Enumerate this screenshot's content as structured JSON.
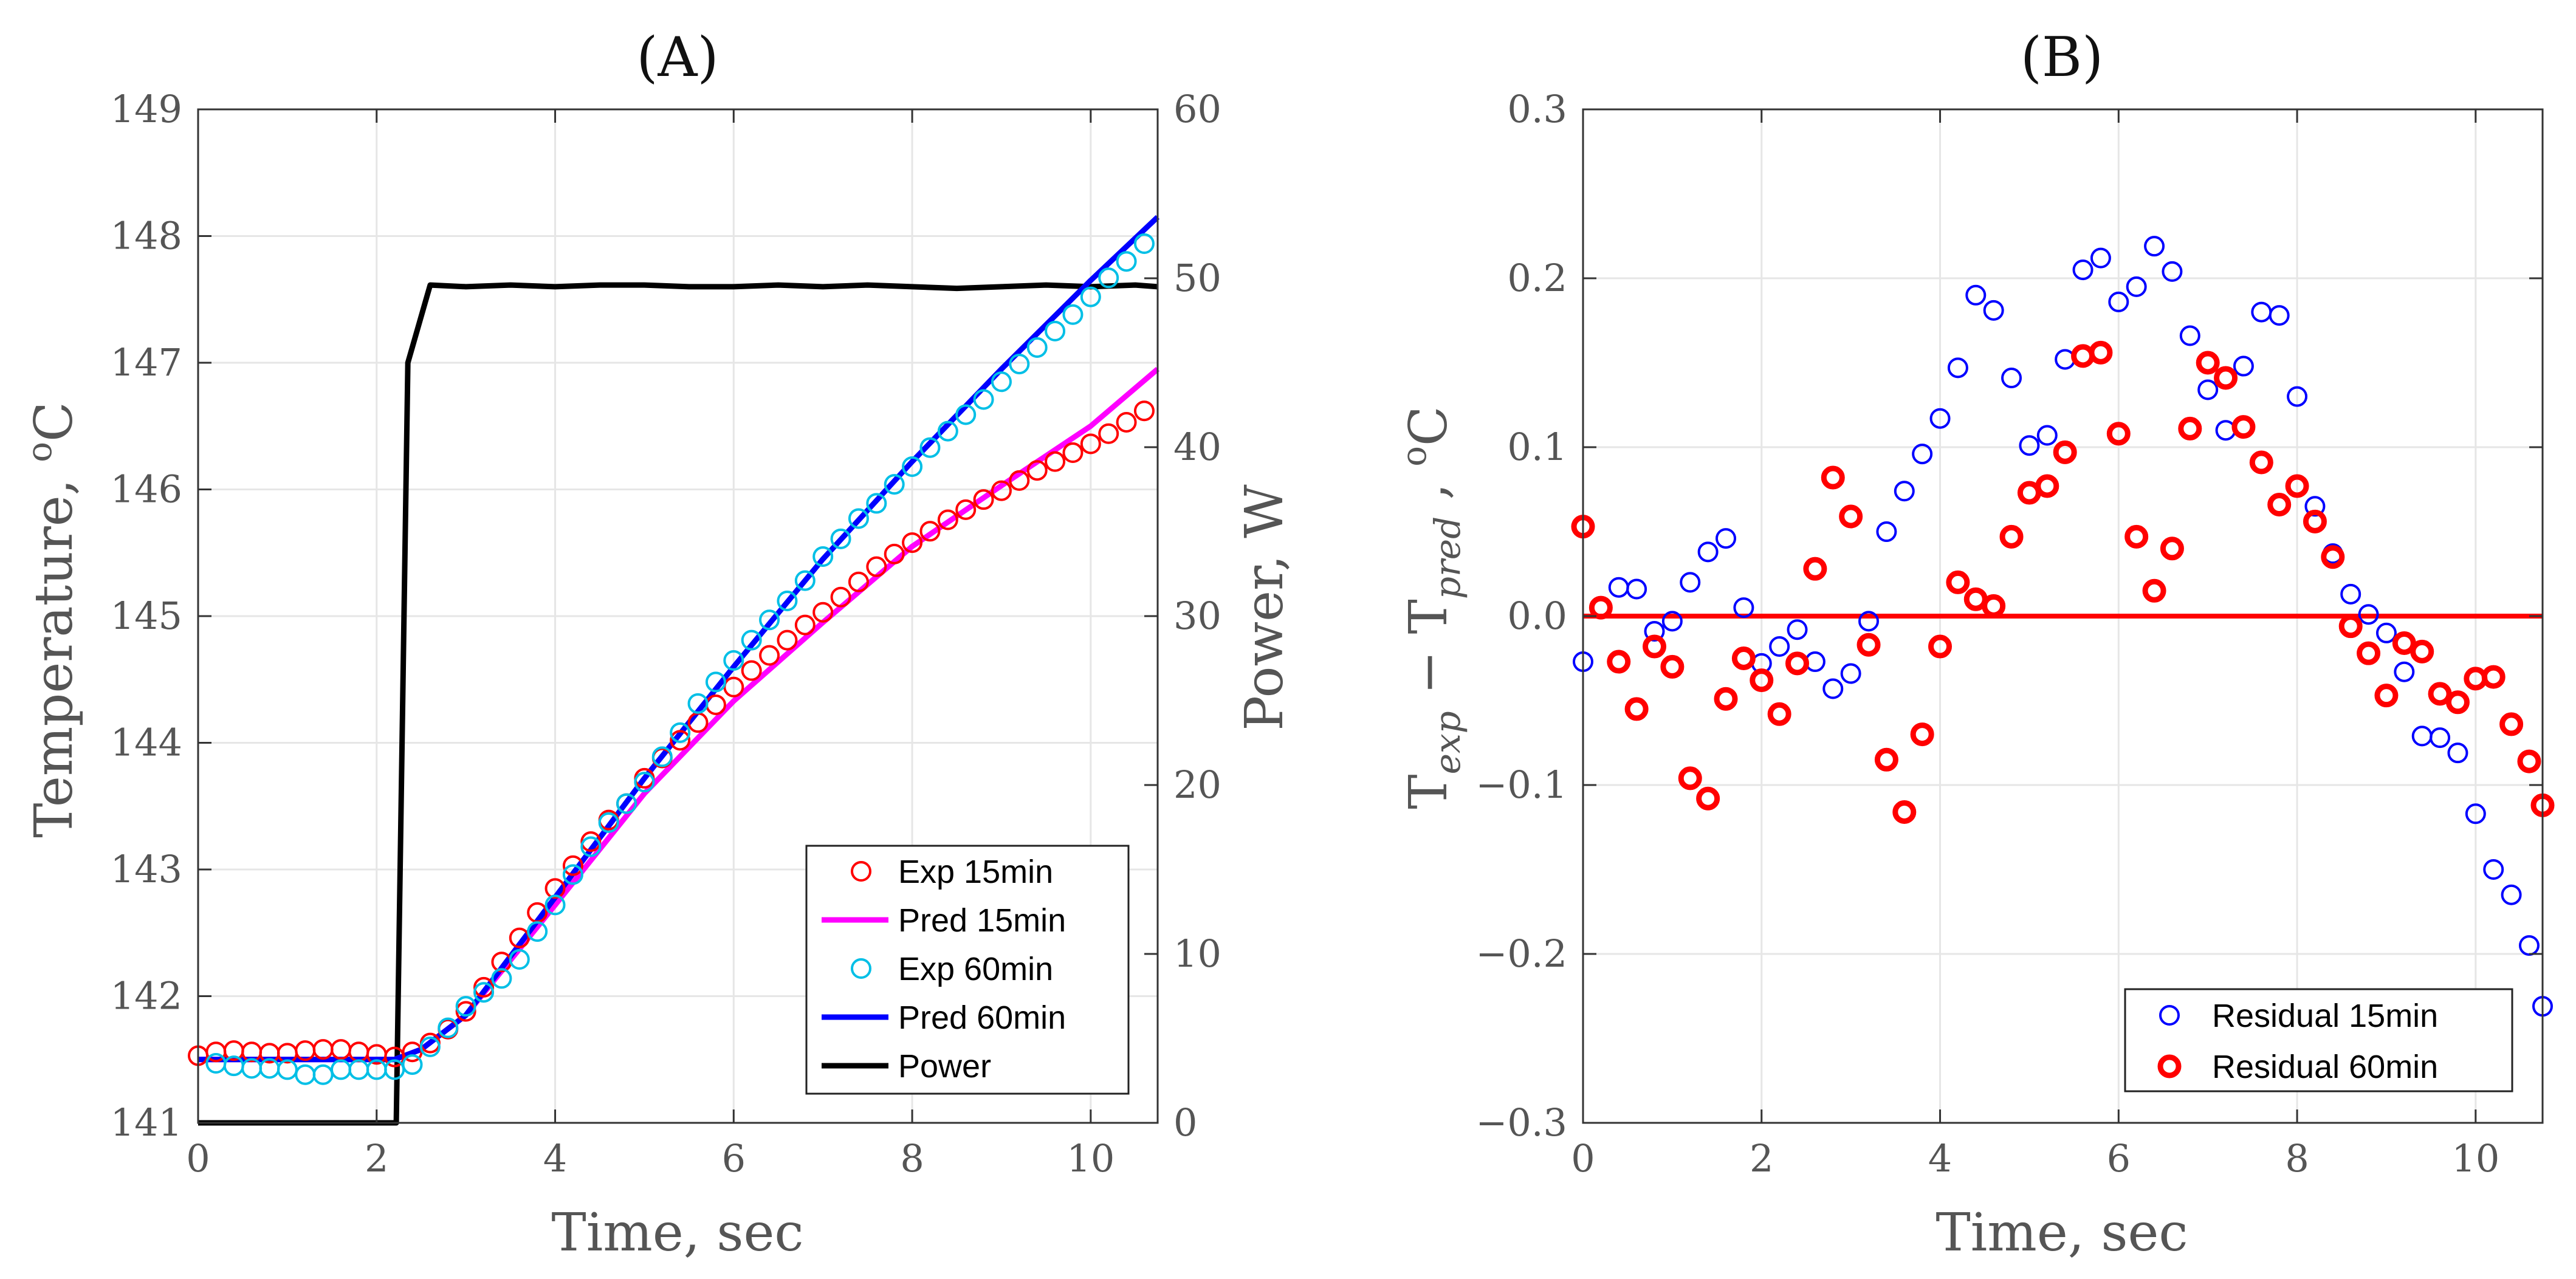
{
  "chart_data": [
    {
      "type": "line",
      "title": "(A)",
      "xlabel": "Time, sec",
      "ylabel": "Temperature, ",
      "ylabel_unit": "C",
      "ylabel_sup": "o",
      "ylabel_right": "Power, W",
      "xlim": [
        0,
        10.75
      ],
      "ylim": [
        141,
        149
      ],
      "ylim_right": [
        0,
        60
      ],
      "xticks": [
        "0",
        "2",
        "4",
        "6",
        "8",
        "10"
      ],
      "yticks": [
        "141",
        "142",
        "143",
        "144",
        "145",
        "146",
        "147",
        "148",
        "149"
      ],
      "yticks_right": [
        "0",
        "10",
        "20",
        "30",
        "40",
        "50",
        "60"
      ],
      "grid": true,
      "legend_position": "bottom-right",
      "colors": {
        "exp15": "#ff0000",
        "pred15": "#ff00ff",
        "exp60": "#00bfe6",
        "pred60": "#0000ff",
        "power": "#000000"
      },
      "series": [
        {
          "name": "Exp 15min",
          "marker": "circle",
          "x": [
            0,
            0.2,
            0.4,
            0.6,
            0.8,
            1.0,
            1.2,
            1.4,
            1.6,
            1.8,
            2.0,
            2.2,
            2.4,
            2.6,
            2.8,
            3.0,
            3.2,
            3.4,
            3.6,
            3.8,
            4.0,
            4.2,
            4.4,
            4.6,
            4.8,
            5.0,
            5.2,
            5.4,
            5.6,
            5.8,
            6.0,
            6.2,
            6.4,
            6.6,
            6.8,
            7.0,
            7.2,
            7.4,
            7.6,
            7.8,
            8.0,
            8.2,
            8.4,
            8.6,
            8.8,
            9.0,
            9.2,
            9.4,
            9.6,
            9.8,
            10.0,
            10.2,
            10.4,
            10.6
          ],
          "y": [
            141.53,
            141.56,
            141.57,
            141.56,
            141.55,
            141.55,
            141.57,
            141.58,
            141.58,
            141.56,
            141.54,
            141.52,
            141.56,
            141.63,
            141.74,
            141.88,
            142.07,
            142.27,
            142.46,
            142.66,
            142.85,
            143.03,
            143.22,
            143.39,
            143.52,
            143.72,
            143.88,
            144.02,
            144.16,
            144.3,
            144.44,
            144.57,
            144.69,
            144.81,
            144.93,
            145.03,
            145.15,
            145.27,
            145.39,
            145.49,
            145.58,
            145.67,
            145.76,
            145.84,
            145.92,
            145.99,
            146.07,
            146.15,
            146.22,
            146.29,
            146.36,
            146.44,
            146.53,
            146.62
          ]
        },
        {
          "name": "Pred 15min",
          "x": [
            0,
            2.2,
            2.5,
            3,
            4,
            5,
            6,
            7,
            8,
            9,
            10,
            10.75
          ],
          "y": [
            141.5,
            141.5,
            141.58,
            141.85,
            142.72,
            143.6,
            144.33,
            144.95,
            145.55,
            146.03,
            146.5,
            146.95
          ]
        },
        {
          "name": "Exp 60min",
          "marker": "circle",
          "x": [
            0.2,
            0.4,
            0.6,
            0.8,
            1.0,
            1.2,
            1.4,
            1.6,
            1.8,
            2.0,
            2.2,
            2.4,
            2.6,
            2.8,
            3.0,
            3.2,
            3.4,
            3.6,
            3.8,
            4.0,
            4.2,
            4.4,
            4.6,
            4.8,
            5.0,
            5.2,
            5.4,
            5.6,
            5.8,
            6.0,
            6.2,
            6.4,
            6.6,
            6.8,
            7.0,
            7.2,
            7.4,
            7.6,
            7.8,
            8.0,
            8.2,
            8.4,
            8.6,
            8.8,
            9.0,
            9.2,
            9.4,
            9.6,
            9.8,
            10.0,
            10.2,
            10.4,
            10.6
          ],
          "y": [
            141.47,
            141.45,
            141.43,
            141.43,
            141.42,
            141.38,
            141.38,
            141.42,
            141.42,
            141.42,
            141.42,
            141.46,
            141.6,
            141.75,
            141.92,
            142.03,
            142.14,
            142.29,
            142.51,
            142.72,
            142.96,
            143.18,
            143.37,
            143.52,
            143.69,
            143.89,
            144.08,
            144.31,
            144.48,
            144.65,
            144.81,
            144.97,
            145.12,
            145.28,
            145.47,
            145.61,
            145.77,
            145.89,
            146.04,
            146.18,
            146.33,
            146.46,
            146.59,
            146.71,
            146.85,
            146.99,
            147.12,
            147.25,
            147.38,
            147.52,
            147.67,
            147.8,
            147.94
          ]
        },
        {
          "name": "Pred 60min",
          "x": [
            0,
            2.2,
            2.5,
            3,
            4,
            5,
            6,
            7,
            8,
            9,
            10,
            10.75
          ],
          "y": [
            141.5,
            141.5,
            141.58,
            141.85,
            142.78,
            143.72,
            144.6,
            145.45,
            146.22,
            146.95,
            147.65,
            148.15
          ]
        },
        {
          "name": "Power",
          "axis": "right",
          "x": [
            0,
            2.22,
            2.35,
            2.6,
            3,
            3.5,
            4,
            4.5,
            5,
            5.5,
            6,
            6.5,
            7,
            7.5,
            8,
            8.5,
            9,
            9.5,
            10,
            10.5,
            10.75
          ],
          "y": [
            0,
            0,
            45,
            49.6,
            49.5,
            49.6,
            49.5,
            49.6,
            49.6,
            49.5,
            49.5,
            49.6,
            49.5,
            49.6,
            49.5,
            49.4,
            49.5,
            49.6,
            49.5,
            49.6,
            49.5
          ]
        }
      ]
    },
    {
      "type": "scatter",
      "title": "(B)",
      "xlabel": "Time, sec",
      "ylabel_main": "T",
      "ylabel_sub1": "exp",
      "ylabel_minus": " − T",
      "ylabel_sub2": "pred",
      "ylabel_sep": " , ",
      "ylabel_sup": "o",
      "ylabel_unit": "C",
      "xlim": [
        0,
        10.75
      ],
      "ylim": [
        -0.3,
        0.3
      ],
      "xticks": [
        "0",
        "2",
        "4",
        "6",
        "8",
        "10"
      ],
      "yticks": [
        "−0.3",
        "−0.2",
        "−0.1",
        "0.0",
        "0.1",
        "0.2",
        "0.3"
      ],
      "grid": true,
      "legend_position": "bottom-right",
      "reference_line": {
        "y": 0,
        "color": "#ff0000"
      },
      "colors": {
        "r15": "#0000ff",
        "r60": "#ff0000"
      },
      "series": [
        {
          "name": "Residual 15min",
          "marker": "circle",
          "x": [
            0,
            0.4,
            0.6,
            0.8,
            1.0,
            1.2,
            1.4,
            1.6,
            1.8,
            2.0,
            2.2,
            2.4,
            2.6,
            2.8,
            3.0,
            3.2,
            3.4,
            3.6,
            3.8,
            4.0,
            4.2,
            4.4,
            4.6,
            4.8,
            5.0,
            5.2,
            5.4,
            5.6,
            5.8,
            6.0,
            6.2,
            6.4,
            6.6,
            6.8,
            7.0,
            7.2,
            7.4,
            7.6,
            7.8,
            8.0,
            8.2,
            8.4,
            8.6,
            8.8,
            9.0,
            9.2,
            9.4,
            9.6,
            9.8,
            10.0,
            10.2,
            10.4,
            10.6,
            10.75
          ],
          "y": [
            -0.027,
            0.017,
            0.016,
            -0.009,
            -0.003,
            0.02,
            0.038,
            0.046,
            0.005,
            -0.028,
            -0.018,
            -0.008,
            -0.027,
            -0.043,
            -0.034,
            -0.003,
            0.05,
            0.074,
            0.096,
            0.117,
            0.147,
            0.19,
            0.181,
            0.141,
            0.101,
            0.107,
            0.152,
            0.205,
            0.212,
            0.186,
            0.195,
            0.219,
            0.204,
            0.166,
            0.134,
            0.11,
            0.148,
            0.18,
            0.178,
            0.13,
            0.065,
            0.037,
            0.013,
            0.001,
            -0.01,
            -0.033,
            -0.071,
            -0.072,
            -0.081,
            -0.117,
            -0.15,
            -0.165,
            -0.195,
            -0.231
          ]
        },
        {
          "name": "Residual 60min",
          "marker": "circle-bold",
          "x": [
            0,
            0.2,
            0.4,
            0.6,
            0.8,
            1.0,
            1.2,
            1.4,
            1.6,
            1.8,
            2.0,
            2.2,
            2.4,
            2.6,
            2.8,
            3.0,
            3.2,
            3.4,
            3.6,
            3.8,
            4.0,
            4.2,
            4.4,
            4.6,
            4.8,
            5.0,
            5.2,
            5.4,
            5.6,
            5.8,
            6.0,
            6.2,
            6.4,
            6.6,
            6.8,
            7.0,
            7.2,
            7.4,
            7.6,
            7.8,
            8.0,
            8.2,
            8.4,
            8.6,
            8.8,
            9.0,
            9.2,
            9.4,
            9.6,
            9.8,
            10.0,
            10.2,
            10.4,
            10.6,
            10.75
          ],
          "y": [
            0.053,
            0.005,
            -0.027,
            -0.055,
            -0.018,
            -0.03,
            -0.096,
            -0.108,
            -0.049,
            -0.025,
            -0.038,
            -0.058,
            -0.028,
            0.028,
            0.082,
            0.059,
            -0.017,
            -0.085,
            -0.116,
            -0.07,
            -0.018,
            0.02,
            0.01,
            0.006,
            0.047,
            0.073,
            0.077,
            0.097,
            0.154,
            0.156,
            0.108,
            0.047,
            0.015,
            0.04,
            0.111,
            0.15,
            0.141,
            0.112,
            0.091,
            0.066,
            0.077,
            0.056,
            0.035,
            -0.006,
            -0.022,
            -0.047,
            -0.016,
            -0.021,
            -0.046,
            -0.051,
            -0.037,
            -0.036,
            -0.064,
            -0.086,
            -0.112
          ]
        }
      ]
    }
  ]
}
